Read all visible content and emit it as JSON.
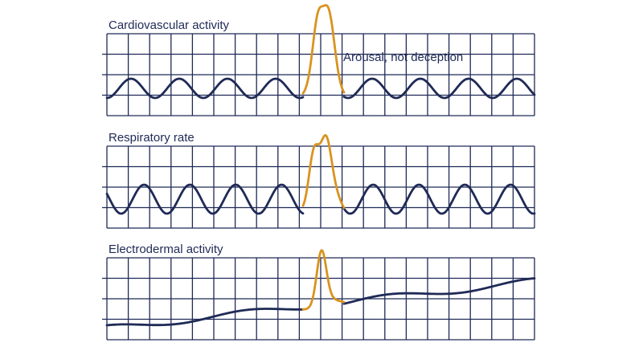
{
  "panels": [
    {
      "title": "Cardiovascular activity",
      "annotation": "Arousal, not deception"
    },
    {
      "title": "Respiratory rate"
    },
    {
      "title": "Electrodermal activity"
    }
  ]
}
